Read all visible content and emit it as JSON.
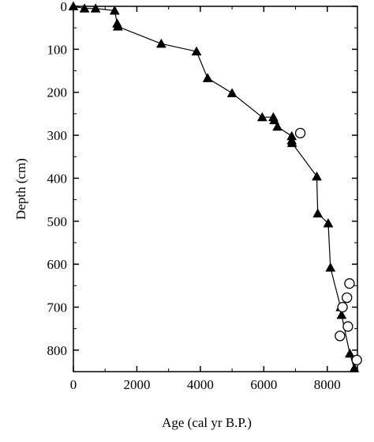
{
  "chart_data": {
    "type": "line",
    "xlabel": "Age (cal yr B.P.)",
    "ylabel": "Depth (cm)",
    "xlim": [
      0,
      8950
    ],
    "ylim": [
      0,
      850
    ],
    "y_inverted": true,
    "x_ticks": [
      0,
      2000,
      4000,
      6000,
      8000
    ],
    "y_ticks": [
      0,
      100,
      200,
      300,
      400,
      500,
      600,
      700,
      800
    ],
    "x_tick_labels": [
      "0",
      "2000",
      "4000",
      "6000",
      "8000"
    ],
    "y_tick_labels": [
      "0",
      "100",
      "200",
      "300",
      "400",
      "500",
      "600",
      "700",
      "800"
    ],
    "grid": false,
    "series": [
      {
        "marker": "filled-triangle",
        "line": true,
        "color": "#000000",
        "x": [
          0,
          350,
          700,
          1300,
          1380,
          1400,
          2770,
          3880,
          4230,
          5000,
          5950,
          6300,
          6330,
          6430,
          6880,
          6880,
          6890,
          7670,
          7700,
          8030,
          8100,
          8420,
          8450,
          8710,
          8850
        ],
        "y": [
          0,
          5,
          5,
          10,
          40,
          47,
          87,
          105,
          167,
          202,
          258,
          258,
          265,
          280,
          302,
          312,
          318,
          396,
          482,
          505,
          608,
          700,
          718,
          808,
          842
        ]
      },
      {
        "marker": "open-circle",
        "line": false,
        "color": "#000000",
        "x": [
          7150,
          8700,
          8620,
          8480,
          8650,
          8400,
          8930
        ],
        "y": [
          295,
          645,
          678,
          700,
          745,
          767,
          823
        ]
      }
    ]
  }
}
